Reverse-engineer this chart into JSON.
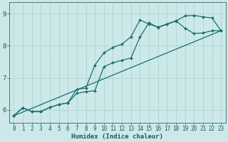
{
  "xlabel": "Humidex (Indice chaleur)",
  "bg_color": "#cce8e8",
  "line_color": "#1a6e6e",
  "grid_color": "#b0d8d8",
  "xlim": [
    -0.5,
    23.5
  ],
  "ylim": [
    5.6,
    9.35
  ],
  "yticks": [
    6,
    7,
    8,
    9
  ],
  "xticks": [
    0,
    1,
    2,
    3,
    4,
    5,
    6,
    7,
    8,
    9,
    10,
    11,
    12,
    13,
    14,
    15,
    16,
    17,
    18,
    19,
    20,
    21,
    22,
    23
  ],
  "line1_x": [
    0,
    1,
    2,
    3,
    4,
    5,
    6,
    7,
    8,
    9,
    10,
    11,
    12,
    13,
    14,
    15,
    16,
    17,
    18,
    19,
    20,
    21,
    22,
    23
  ],
  "line1_y": [
    5.82,
    6.07,
    5.95,
    5.95,
    6.08,
    6.17,
    6.22,
    6.52,
    6.57,
    6.6,
    7.35,
    7.47,
    7.55,
    7.62,
    8.27,
    8.72,
    8.57,
    8.67,
    8.77,
    8.93,
    8.95,
    8.9,
    8.87,
    8.47
  ],
  "line2_x": [
    0,
    1,
    2,
    3,
    4,
    5,
    6,
    7,
    8,
    9,
    10,
    11,
    12,
    13,
    14,
    15,
    16,
    17,
    18,
    19,
    20,
    21,
    22,
    23
  ],
  "line2_y": [
    5.82,
    6.07,
    5.95,
    5.95,
    6.08,
    6.17,
    6.22,
    6.65,
    6.68,
    7.4,
    7.78,
    7.95,
    8.05,
    8.28,
    8.8,
    8.68,
    8.58,
    8.68,
    8.78,
    8.55,
    8.38,
    8.4,
    8.47,
    8.47
  ],
  "line3_x": [
    0,
    23
  ],
  "line3_y": [
    5.82,
    8.47
  ],
  "marker_size": 2.0,
  "line_width": 0.9
}
